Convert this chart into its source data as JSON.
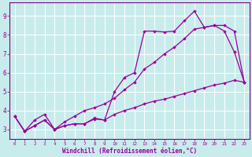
{
  "xlabel": "Windchill (Refroidissement éolien,°C)",
  "bg_color": "#c8ecec",
  "line_color": "#990099",
  "grid_color": "#ffffff",
  "spine_color": "#800080",
  "xlim": [
    -0.5,
    23.5
  ],
  "ylim": [
    2.5,
    9.7
  ],
  "yticks": [
    3,
    4,
    5,
    6,
    7,
    8,
    9
  ],
  "xticks": [
    0,
    1,
    2,
    3,
    4,
    5,
    6,
    7,
    8,
    9,
    10,
    11,
    12,
    13,
    14,
    15,
    16,
    17,
    18,
    19,
    20,
    21,
    22,
    23
  ],
  "line1_x": [
    0,
    1,
    2,
    3,
    4,
    5,
    6,
    7,
    8,
    9,
    10,
    11,
    12,
    13,
    14,
    15,
    16,
    17,
    18,
    19,
    20,
    21,
    22,
    23
  ],
  "line1_y": [
    3.7,
    2.9,
    3.2,
    3.5,
    3.0,
    3.2,
    3.3,
    3.3,
    3.6,
    3.5,
    5.0,
    5.75,
    6.0,
    8.2,
    8.2,
    8.15,
    8.2,
    8.75,
    9.25,
    8.4,
    8.5,
    8.2,
    7.1,
    5.5
  ],
  "line2_x": [
    0,
    1,
    2,
    3,
    4,
    5,
    6,
    7,
    8,
    9,
    10,
    11,
    12,
    13,
    14,
    15,
    16,
    17,
    18,
    19,
    20,
    21,
    22,
    23
  ],
  "line2_y": [
    3.7,
    2.9,
    3.5,
    3.8,
    3.0,
    3.4,
    3.7,
    4.0,
    4.15,
    4.35,
    4.65,
    5.1,
    5.5,
    6.2,
    6.55,
    7.0,
    7.35,
    7.8,
    8.3,
    8.4,
    8.5,
    8.5,
    8.2,
    5.5
  ],
  "line3_x": [
    0,
    1,
    2,
    3,
    4,
    5,
    6,
    7,
    8,
    9,
    10,
    11,
    12,
    13,
    14,
    15,
    16,
    17,
    18,
    19,
    20,
    21,
    22,
    23
  ],
  "line3_y": [
    3.7,
    2.9,
    3.2,
    3.5,
    3.0,
    3.2,
    3.3,
    3.3,
    3.55,
    3.5,
    3.8,
    4.0,
    4.15,
    4.35,
    4.5,
    4.6,
    4.75,
    4.9,
    5.05,
    5.2,
    5.35,
    5.45,
    5.6,
    5.5
  ]
}
